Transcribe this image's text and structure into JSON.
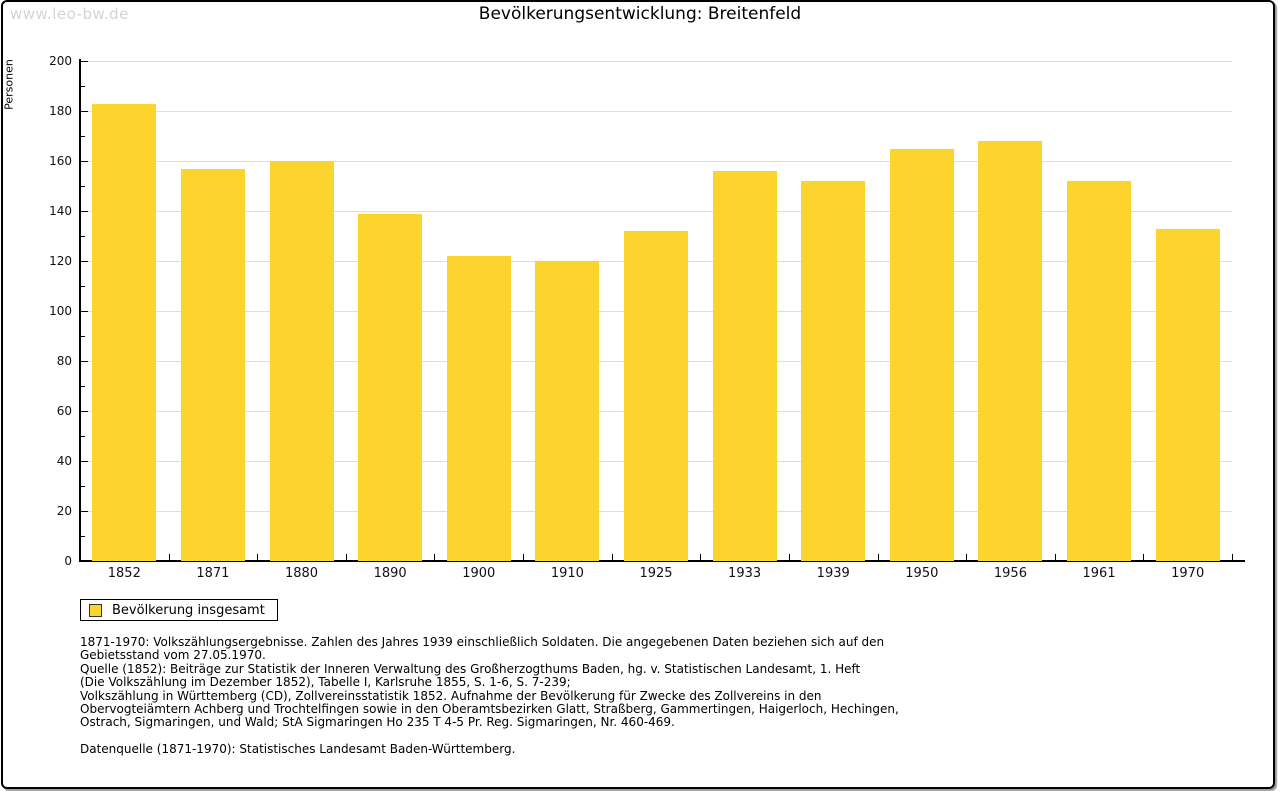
{
  "page": {
    "watermark": "www.leo-bw.de",
    "title": "Bevölkerungsentwicklung: Breitenfeld"
  },
  "chart_data": {
    "type": "bar",
    "title": "Bevölkerungsentwicklung: Breitenfeld",
    "xlabel": "",
    "ylabel": "Personen",
    "categories": [
      "1852",
      "1871",
      "1880",
      "1890",
      "1900",
      "1910",
      "1925",
      "1933",
      "1939",
      "1950",
      "1956",
      "1961",
      "1970"
    ],
    "series": [
      {
        "name": "Bevölkerung insgesamt",
        "values": [
          183,
          157,
          160,
          139,
          122,
          120,
          132,
          156,
          152,
          165,
          168,
          152,
          133
        ],
        "color": "#FDD32D"
      }
    ],
    "ylim": [
      0,
      200
    ],
    "ytick_step": 20,
    "ytick_minor_step": 10,
    "grid": true,
    "gridline_color": "#dddddd",
    "legend_position": "bottom-left"
  },
  "legend": {
    "label": "Bevölkerung insgesamt",
    "swatch_color": "#FDD32D"
  },
  "footnotes": {
    "lines": [
      "1871-1970: Volkszählungsergebnisse. Zahlen des Jahres 1939 einschließlich Soldaten. Die angegebenen Daten beziehen sich auf den",
      "Gebietsstand vom 27.05.1970.",
      "Quelle (1852): Beiträge zur Statistik der Inneren Verwaltung des Großherzogthums Baden, hg. v. Statistischen Landesamt, 1. Heft",
      "(Die Volkszählung im Dezember 1852), Tabelle I, Karlsruhe 1855, S. 1-6, S. 7-239;",
      "Volkszählung in Württemberg (CD), Zollvereinsstatistik 1852. Aufnahme der Bevölkerung für Zwecke des Zollvereins in den",
      "Obervogteiämtern Achberg und Trochtelfingen sowie in den Oberamtsbezirken Glatt, Straßberg, Gammertingen, Haigerloch, Hechingen,",
      "Ostrach, Sigmaringen, und Wald; StA Sigmaringen Ho 235 T 4-5 Pr. Reg. Sigmaringen, Nr. 460-469.",
      "",
      "Datenquelle (1871-1970): Statistisches Landesamt Baden-Württemberg."
    ]
  },
  "colors": {
    "bar": "#FDD32D",
    "grid": "#dddddd",
    "axis": "#000000",
    "watermark": "#d4d4d4",
    "frame_shadow": "#9a9a9a"
  }
}
